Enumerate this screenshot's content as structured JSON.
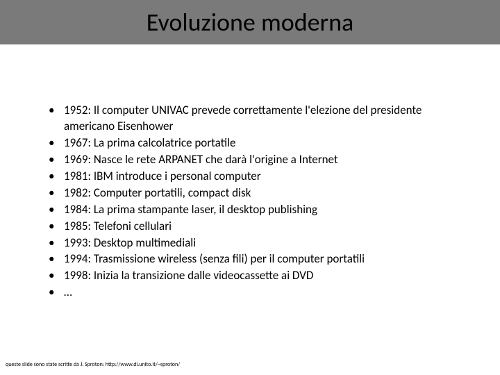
{
  "title": "Evoluzione moderna",
  "bullets": [
    "1952: Il computer UNIVAC prevede correttamente l'elezione del presidente americano Eisenhower",
    "1967: La prima calcolatrice portatile",
    "1969: Nasce le rete ARPANET che darà l'origine a Internet",
    "1981: IBM introduce i personal computer",
    "1982: Computer portatili, compact disk",
    "1984: La prima stampante laser, il desktop publishing",
    "1985: Telefoni cellulari",
    "1993: Desktop multimediali",
    "1994: Trasmissione wireless (senza fili) per il computer portatili",
    "1998: Inizia la transizione dalle videocassette ai DVD",
    "…"
  ],
  "footer": "queste slide sono state scritte da J. Sproton: http://www.di.unito.it/~sproton/",
  "colors": {
    "title_bar_bg": "#7a7a7a",
    "title_text": "#000000",
    "body_text": "#000000",
    "page_bg": "#ffffff"
  },
  "fonts": {
    "title_size": 36,
    "body_size": 17,
    "footer_size": 8
  }
}
